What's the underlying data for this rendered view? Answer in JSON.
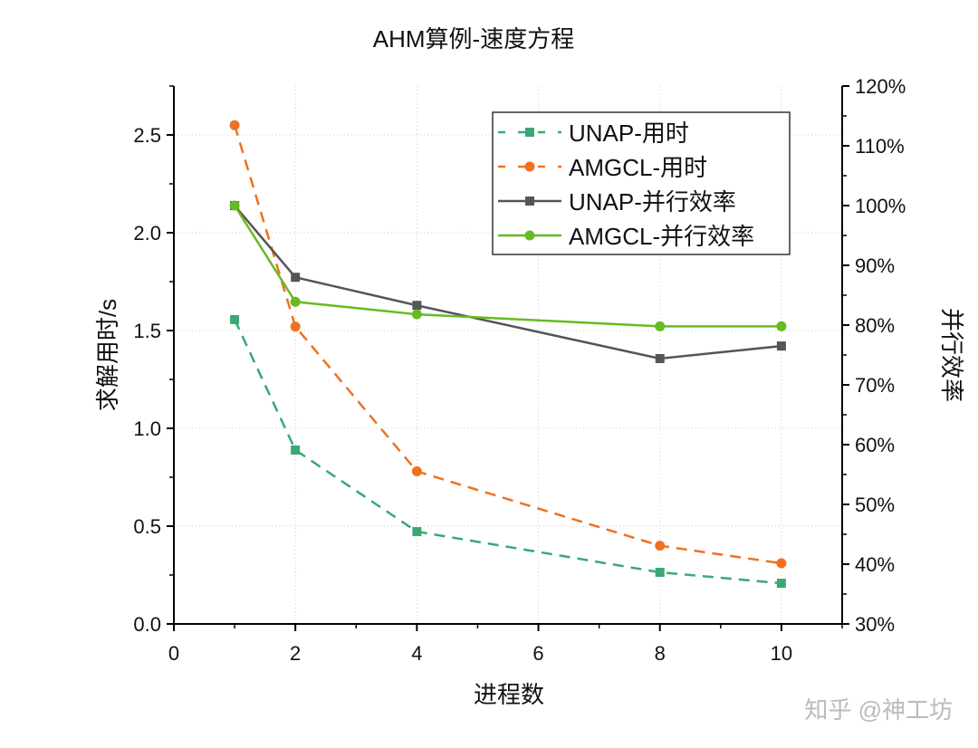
{
  "chart_data": {
    "type": "line",
    "title": "AHM算例-速度方程",
    "xlabel": "进程数",
    "ylabel": "求解用时/s",
    "y2label": "并行效率",
    "xlim": [
      0,
      11
    ],
    "ylim": [
      0,
      2.75
    ],
    "y2lim": [
      30,
      120
    ],
    "xticks": [
      0,
      2,
      4,
      6,
      8,
      10
    ],
    "yticks": [
      "0.0",
      "0.5",
      "1.0",
      "1.5",
      "2.0",
      "2.5"
    ],
    "y2ticks": [
      "30%",
      "40%",
      "50%",
      "60%",
      "70%",
      "80%",
      "90%",
      "100%",
      "110%",
      "120%"
    ],
    "grid": true,
    "legend_position": "top-right",
    "x": [
      1,
      2,
      4,
      8,
      10
    ],
    "series": [
      {
        "name": "UNAP-用时",
        "axis": "left",
        "values": [
          1.556,
          0.889,
          0.472,
          0.264,
          0.208
        ],
        "color": "#3aa876",
        "dash": true,
        "marker": "square"
      },
      {
        "name": "AMGCL-用时",
        "axis": "left",
        "values": [
          2.55,
          1.52,
          0.78,
          0.4,
          0.31
        ],
        "color": "#f07020",
        "dash": true,
        "marker": "circle"
      },
      {
        "name": "UNAP-并行效率",
        "axis": "right",
        "values": [
          100,
          88,
          83.3,
          74.4,
          76.5
        ],
        "color": "#555555",
        "dash": false,
        "marker": "square"
      },
      {
        "name": "AMGCL-并行效率",
        "axis": "right",
        "values": [
          100,
          83.9,
          81.8,
          79.8,
          79.8
        ],
        "color": "#66bb22",
        "dash": false,
        "marker": "circle"
      }
    ]
  },
  "watermark": "知乎 @神工坊"
}
